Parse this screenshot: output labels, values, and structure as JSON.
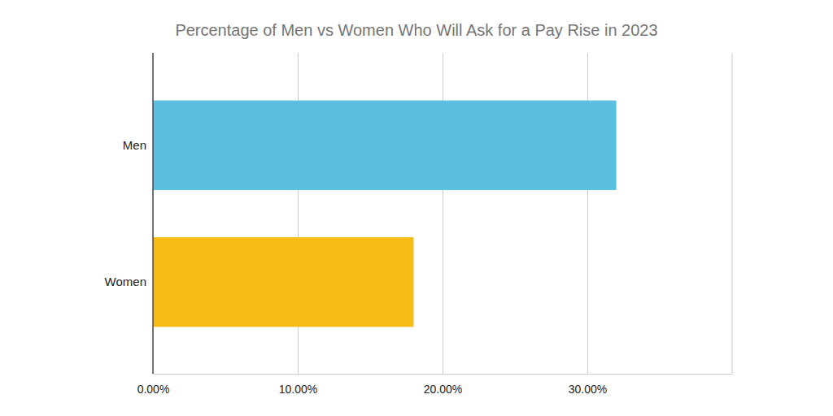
{
  "chart_data": {
    "type": "bar",
    "title": "Percentage of Men vs Women Who Will Ask for a Pay Rise in 2023",
    "orientation": "horizontal",
    "categories": [
      "Men",
      "Women"
    ],
    "values": [
      32,
      18
    ],
    "colors": [
      "#5abfe1",
      "#f7bb16"
    ],
    "xlim": [
      0,
      40
    ],
    "xticks": [
      {
        "value": 0,
        "label": "0.00%"
      },
      {
        "value": 10,
        "label": "10.00%"
      },
      {
        "value": 20,
        "label": "20.00%"
      },
      {
        "value": 30,
        "label": "30.00%"
      }
    ],
    "grid": true
  }
}
